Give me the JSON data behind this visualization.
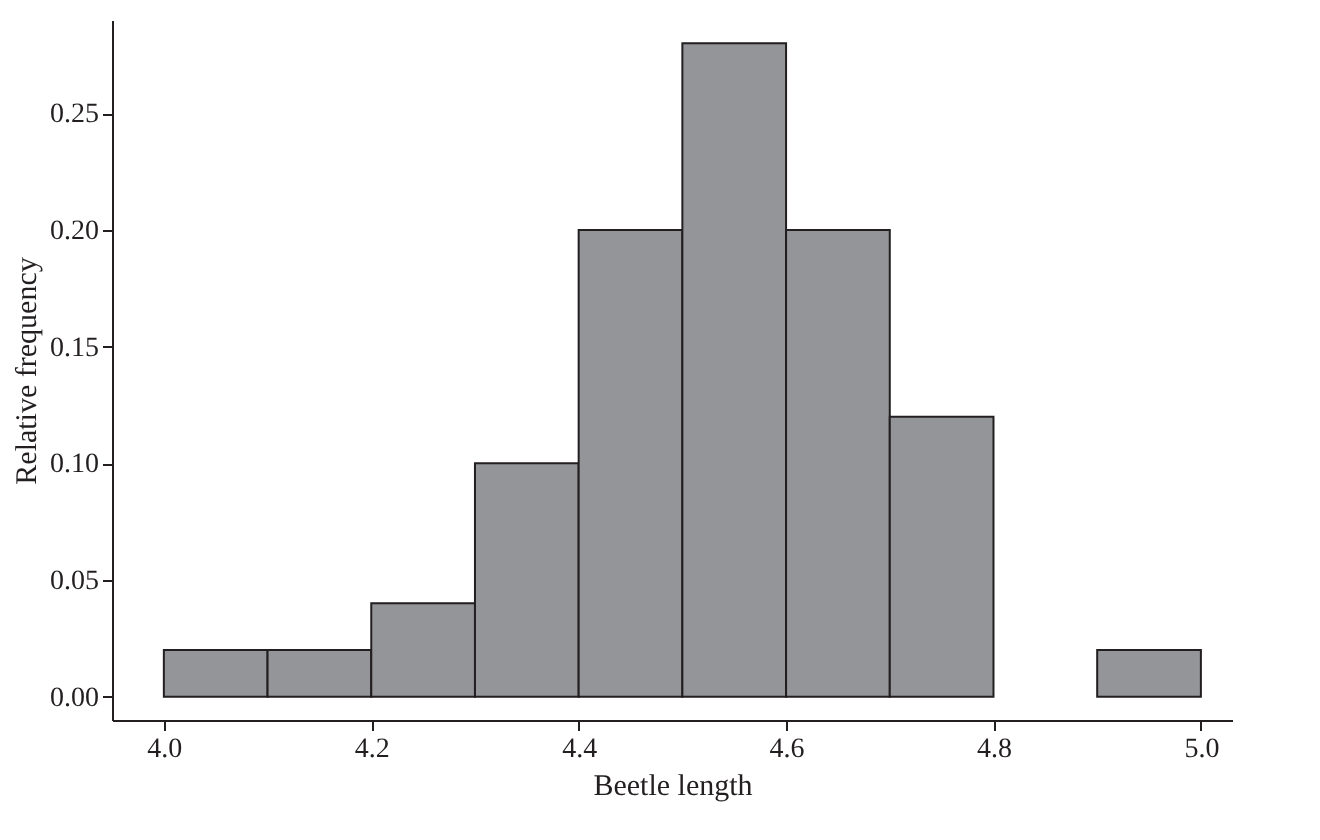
{
  "chart_data": {
    "type": "histogram",
    "xlabel": "Beetle length",
    "ylabel": "Relative frequency",
    "bins": [
      4.0,
      4.1,
      4.2,
      4.3,
      4.4,
      4.5,
      4.6,
      4.7,
      4.8,
      4.9,
      5.0
    ],
    "values": [
      0.02,
      0.02,
      0.04,
      0.1,
      0.2,
      0.28,
      0.2,
      0.12,
      0.0,
      0.02
    ],
    "color": "#939598",
    "xlim": [
      3.95,
      5.03
    ],
    "xticks": [
      {
        "value": 4.0,
        "label": "4.0"
      },
      {
        "value": 4.2,
        "label": "4.2"
      },
      {
        "value": 4.4,
        "label": "4.4"
      },
      {
        "value": 4.6,
        "label": "4.6"
      },
      {
        "value": 4.8,
        "label": "4.8"
      },
      {
        "value": 5.0,
        "label": "5.0"
      }
    ],
    "ylim": [
      -0.01,
      0.29
    ],
    "yticks": [
      {
        "value": 0,
        "label": "0.00"
      },
      {
        "value": 0.05,
        "label": "0.05"
      },
      {
        "value": 0.1,
        "label": "0.10"
      },
      {
        "value": 0.15,
        "label": "0.15"
      },
      {
        "value": 0.2,
        "label": "0.20"
      },
      {
        "value": 0.25,
        "label": "0.25"
      }
    ],
    "grid": false
  }
}
